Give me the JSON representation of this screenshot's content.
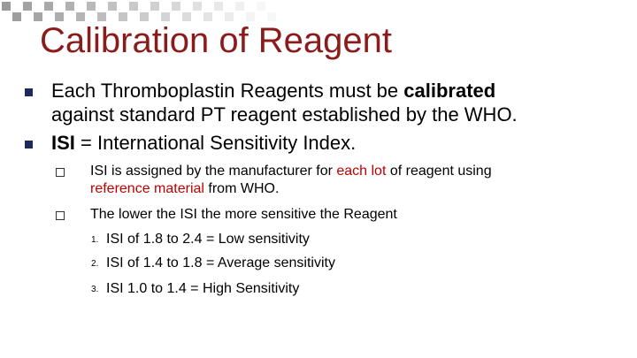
{
  "title": "Calibration of Reagent",
  "bullets": [
    {
      "level": 1,
      "lines": [
        [
          {
            "text": "Each Thromboplastin Reagents must be "
          },
          {
            "text": "calibrated",
            "bold": true
          }
        ],
        [
          {
            "text": "against standard PT reagent established by the WHO."
          }
        ]
      ]
    },
    {
      "level": 1,
      "lines": [
        [
          {
            "text": "ISI",
            "bold": true
          },
          {
            "text": " = International Sensitivity Index."
          }
        ]
      ]
    },
    {
      "level": 2,
      "lines": [
        [
          {
            "text": "ISI is assigned by the manufacturer for "
          },
          {
            "text": "each lot",
            "color": "#c00000"
          },
          {
            "text": " of reagent using"
          }
        ],
        [
          {
            "text": "reference material",
            "color": "#c00000"
          },
          {
            "text": " from WHO."
          }
        ]
      ]
    },
    {
      "level": 2,
      "lines": [
        [
          {
            "text": "The lower the ISI the more sensitive the Reagent"
          }
        ]
      ]
    },
    {
      "level": 3,
      "number": "1.",
      "lines": [
        [
          {
            "text": "ISI of 1.8 to 2.4 = Low sensitivity"
          }
        ]
      ]
    },
    {
      "level": 3,
      "number": "2.",
      "lines": [
        [
          {
            "text": "ISI of 1.4 to 1.8 = Average sensitivity"
          }
        ]
      ]
    },
    {
      "level": 3,
      "number": "3.",
      "lines": [
        [
          {
            "text": "ISI 1.0 to 1.4 = High Sensitivity"
          }
        ]
      ]
    }
  ]
}
